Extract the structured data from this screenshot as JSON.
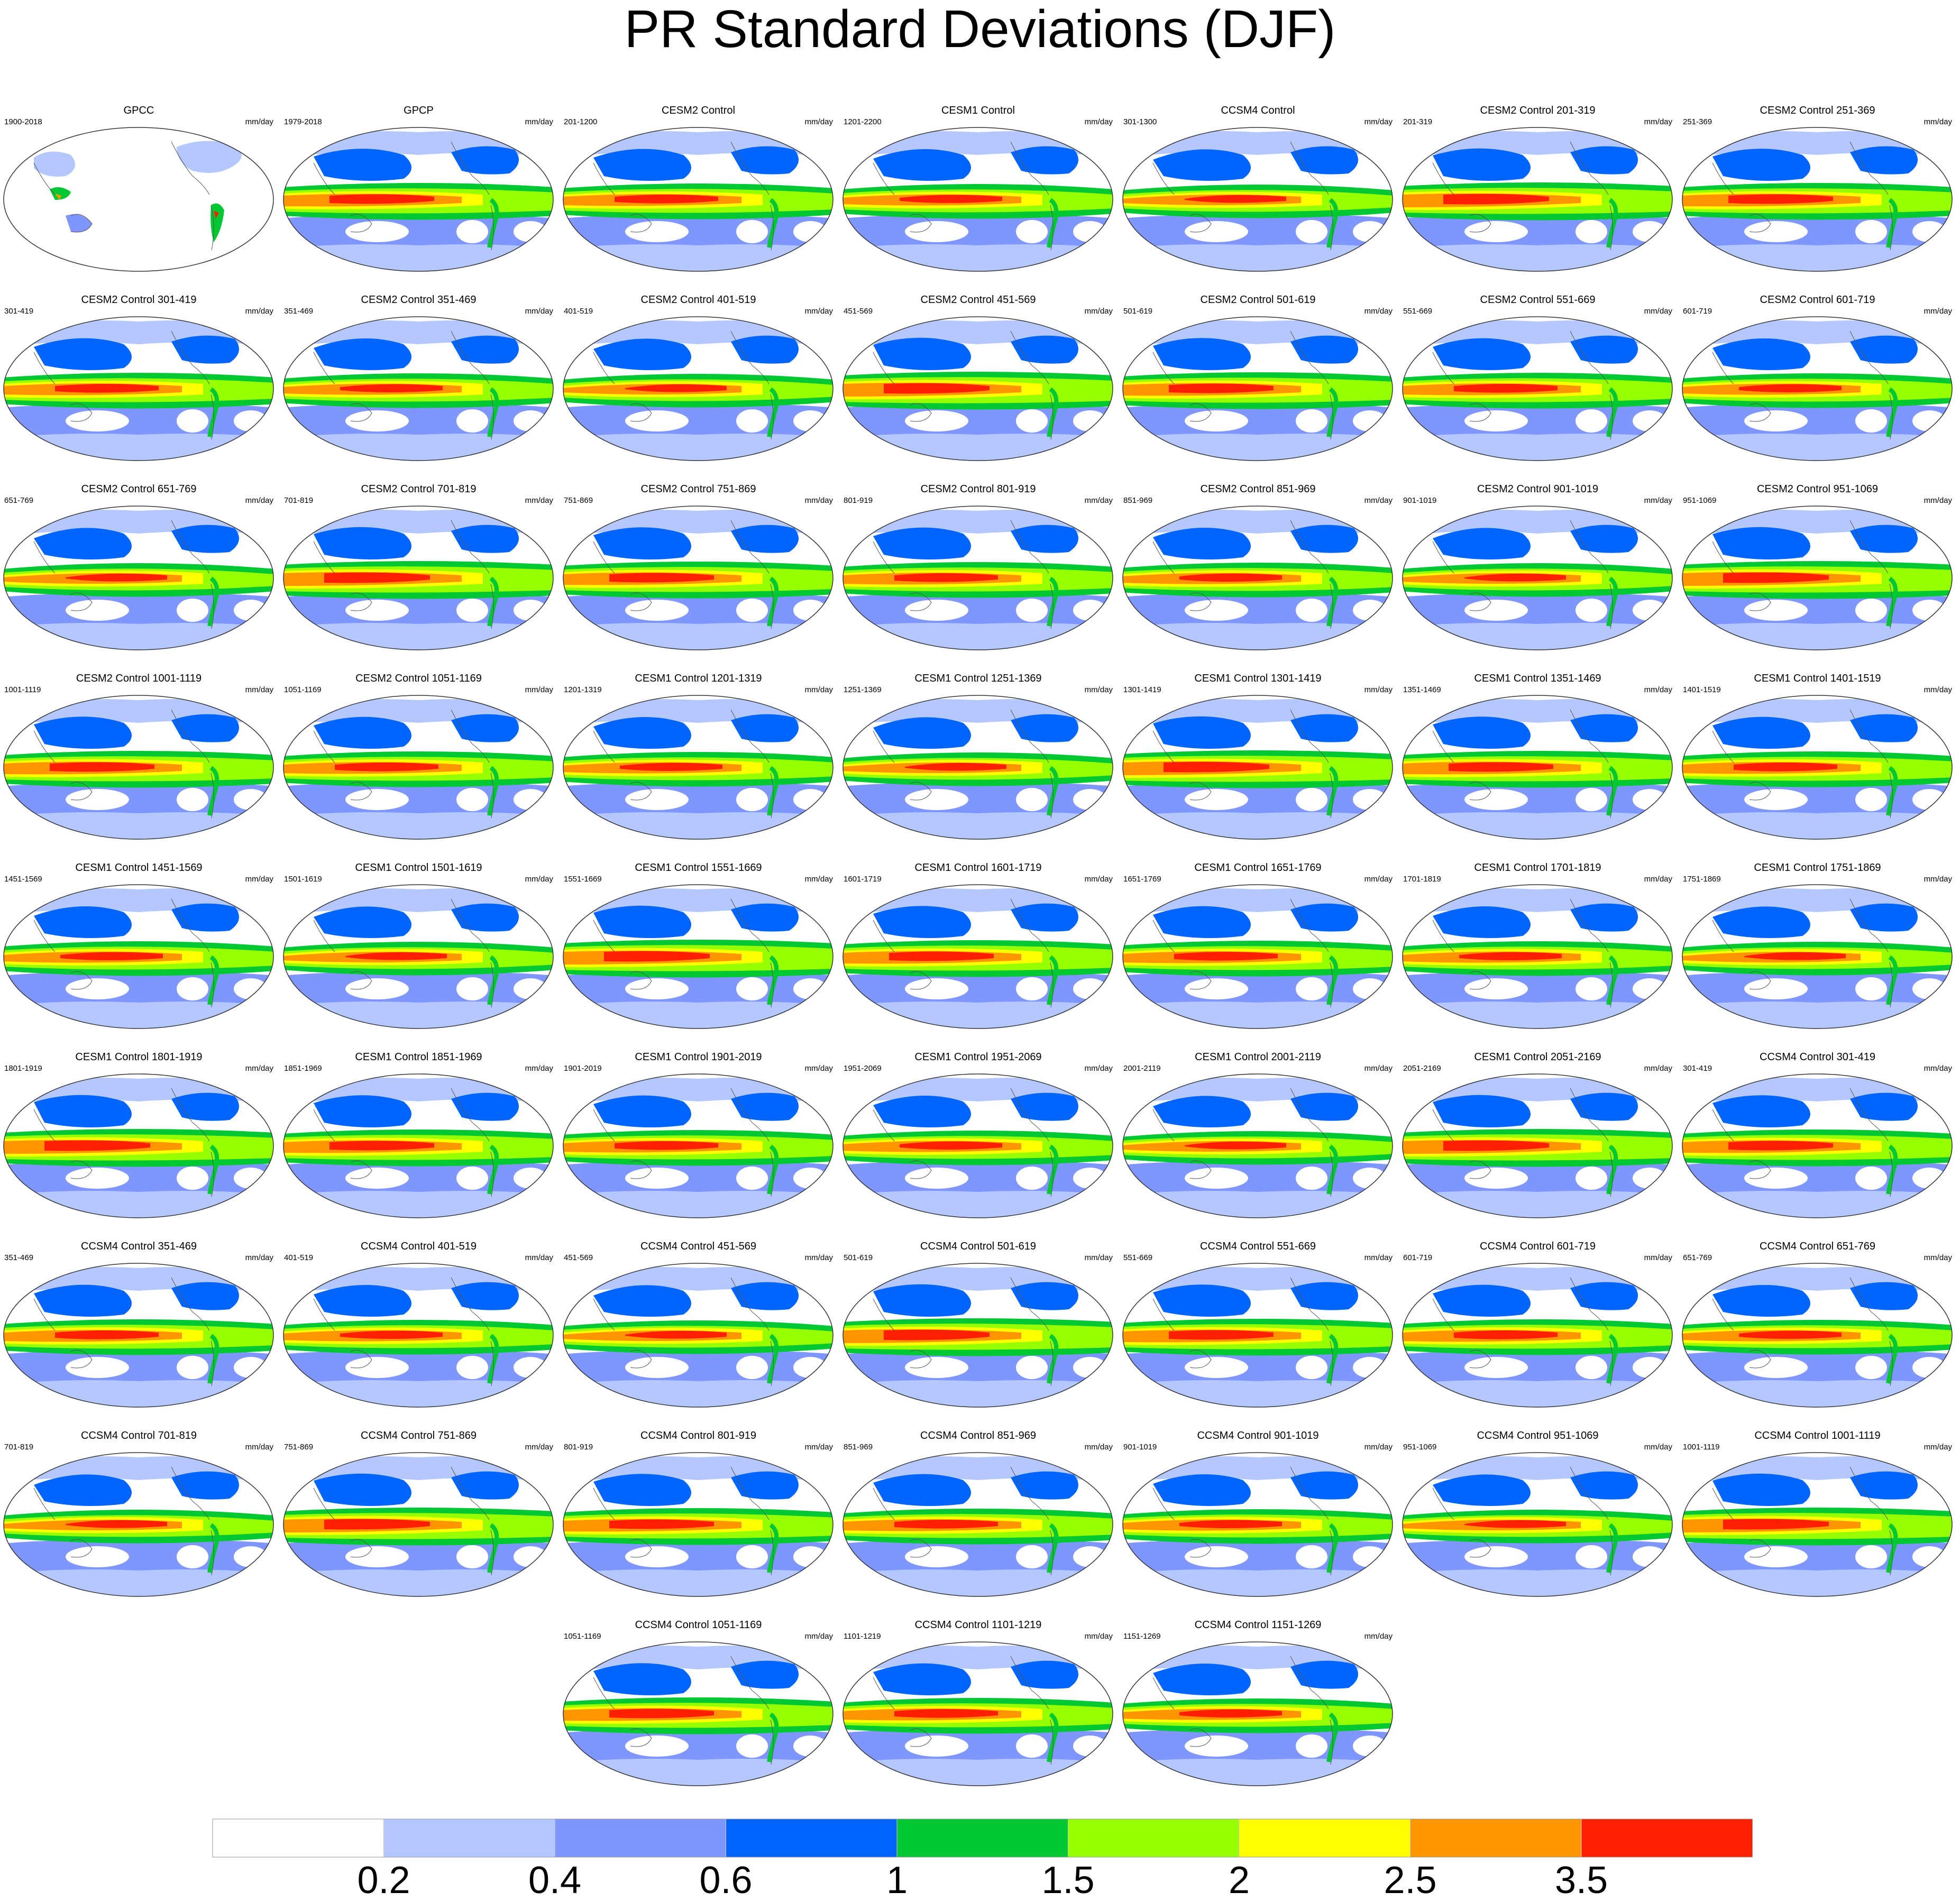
{
  "title": "PR Standard Deviations (DJF)",
  "chart_data": {
    "type": "heatmap",
    "title": "PR Standard Deviations (DJF)",
    "units": "mm/day",
    "colorbar": {
      "levels": [
        "0.2",
        "0.4",
        "0.6",
        "1",
        "1.5",
        "2",
        "2.5",
        "3.5"
      ],
      "colors": [
        "#ffffff",
        "#b4c8ff",
        "#7f96ff",
        "#0064ff",
        "#00c832",
        "#96ff00",
        "#ffff00",
        "#ff9600",
        "#ff1e00"
      ]
    },
    "panels": [
      {
        "title": "GPCC",
        "years": "1900-2018",
        "units": "mm/day",
        "obs": "land"
      },
      {
        "title": "GPCP",
        "years": "1979-2018",
        "units": "mm/day",
        "obs": "full"
      },
      {
        "title": "CESM2 Control",
        "years": "201-1200",
        "units": "mm/day"
      },
      {
        "title": "CESM1 Control",
        "years": "1201-2200",
        "units": "mm/day"
      },
      {
        "title": "CCSM4 Control",
        "years": "301-1300",
        "units": "mm/day"
      },
      {
        "title": "CESM2 Control 201-319",
        "years": "201-319",
        "units": "mm/day"
      },
      {
        "title": "CESM2 Control 251-369",
        "years": "251-369",
        "units": "mm/day"
      },
      {
        "title": "CESM2 Control 301-419",
        "years": "301-419",
        "units": "mm/day"
      },
      {
        "title": "CESM2 Control 351-469",
        "years": "351-469",
        "units": "mm/day"
      },
      {
        "title": "CESM2 Control 401-519",
        "years": "401-519",
        "units": "mm/day"
      },
      {
        "title": "CESM2 Control 451-569",
        "years": "451-569",
        "units": "mm/day"
      },
      {
        "title": "CESM2 Control 501-619",
        "years": "501-619",
        "units": "mm/day"
      },
      {
        "title": "CESM2 Control 551-669",
        "years": "551-669",
        "units": "mm/day"
      },
      {
        "title": "CESM2 Control 601-719",
        "years": "601-719",
        "units": "mm/day"
      },
      {
        "title": "CESM2 Control 651-769",
        "years": "651-769",
        "units": "mm/day"
      },
      {
        "title": "CESM2 Control 701-819",
        "years": "701-819",
        "units": "mm/day"
      },
      {
        "title": "CESM2 Control 751-869",
        "years": "751-869",
        "units": "mm/day"
      },
      {
        "title": "CESM2 Control 801-919",
        "years": "801-919",
        "units": "mm/day"
      },
      {
        "title": "CESM2 Control 851-969",
        "years": "851-969",
        "units": "mm/day"
      },
      {
        "title": "CESM2 Control 901-1019",
        "years": "901-1019",
        "units": "mm/day"
      },
      {
        "title": "CESM2 Control 951-1069",
        "years": "951-1069",
        "units": "mm/day"
      },
      {
        "title": "CESM2 Control 1001-1119",
        "years": "1001-1119",
        "units": "mm/day"
      },
      {
        "title": "CESM2 Control 1051-1169",
        "years": "1051-1169",
        "units": "mm/day"
      },
      {
        "title": "CESM1 Control 1201-1319",
        "years": "1201-1319",
        "units": "mm/day"
      },
      {
        "title": "CESM1 Control 1251-1369",
        "years": "1251-1369",
        "units": "mm/day"
      },
      {
        "title": "CESM1 Control 1301-1419",
        "years": "1301-1419",
        "units": "mm/day"
      },
      {
        "title": "CESM1 Control 1351-1469",
        "years": "1351-1469",
        "units": "mm/day"
      },
      {
        "title": "CESM1 Control 1401-1519",
        "years": "1401-1519",
        "units": "mm/day"
      },
      {
        "title": "CESM1 Control 1451-1569",
        "years": "1451-1569",
        "units": "mm/day"
      },
      {
        "title": "CESM1 Control 1501-1619",
        "years": "1501-1619",
        "units": "mm/day"
      },
      {
        "title": "CESM1 Control 1551-1669",
        "years": "1551-1669",
        "units": "mm/day"
      },
      {
        "title": "CESM1 Control 1601-1719",
        "years": "1601-1719",
        "units": "mm/day"
      },
      {
        "title": "CESM1 Control 1651-1769",
        "years": "1651-1769",
        "units": "mm/day"
      },
      {
        "title": "CESM1 Control 1701-1819",
        "years": "1701-1819",
        "units": "mm/day"
      },
      {
        "title": "CESM1 Control 1751-1869",
        "years": "1751-1869",
        "units": "mm/day"
      },
      {
        "title": "CESM1 Control 1801-1919",
        "years": "1801-1919",
        "units": "mm/day"
      },
      {
        "title": "CESM1 Control 1851-1969",
        "years": "1851-1969",
        "units": "mm/day"
      },
      {
        "title": "CESM1 Control 1901-2019",
        "years": "1901-2019",
        "units": "mm/day"
      },
      {
        "title": "CESM1 Control 1951-2069",
        "years": "1951-2069",
        "units": "mm/day"
      },
      {
        "title": "CESM1 Control 2001-2119",
        "years": "2001-2119",
        "units": "mm/day"
      },
      {
        "title": "CESM1 Control 2051-2169",
        "years": "2051-2169",
        "units": "mm/day"
      },
      {
        "title": "CCSM4 Control 301-419",
        "years": "301-419",
        "units": "mm/day"
      },
      {
        "title": "CCSM4 Control 351-469",
        "years": "351-469",
        "units": "mm/day"
      },
      {
        "title": "CCSM4 Control 401-519",
        "years": "401-519",
        "units": "mm/day"
      },
      {
        "title": "CCSM4 Control 451-569",
        "years": "451-569",
        "units": "mm/day"
      },
      {
        "title": "CCSM4 Control 501-619",
        "years": "501-619",
        "units": "mm/day"
      },
      {
        "title": "CCSM4 Control 551-669",
        "years": "551-669",
        "units": "mm/day"
      },
      {
        "title": "CCSM4 Control 601-719",
        "years": "601-719",
        "units": "mm/day"
      },
      {
        "title": "CCSM4 Control 651-769",
        "years": "651-769",
        "units": "mm/day"
      },
      {
        "title": "CCSM4 Control 701-819",
        "years": "701-819",
        "units": "mm/day"
      },
      {
        "title": "CCSM4 Control 751-869",
        "years": "751-869",
        "units": "mm/day"
      },
      {
        "title": "CCSM4 Control 801-919",
        "years": "801-919",
        "units": "mm/day"
      },
      {
        "title": "CCSM4 Control 851-969",
        "years": "851-969",
        "units": "mm/day"
      },
      {
        "title": "CCSM4 Control 901-1019",
        "years": "901-1019",
        "units": "mm/day"
      },
      {
        "title": "CCSM4 Control 951-1069",
        "years": "951-1069",
        "units": "mm/day"
      },
      {
        "title": "CCSM4 Control 1001-1119",
        "years": "1001-1119",
        "units": "mm/day"
      },
      {
        "title": "CCSM4 Control 1051-1169",
        "years": "1051-1169",
        "units": "mm/day"
      },
      {
        "title": "CCSM4 Control 1101-1219",
        "years": "1101-1219",
        "units": "mm/day"
      },
      {
        "title": "CCSM4 Control 1151-1269",
        "years": "1151-1269",
        "units": "mm/day"
      }
    ]
  }
}
